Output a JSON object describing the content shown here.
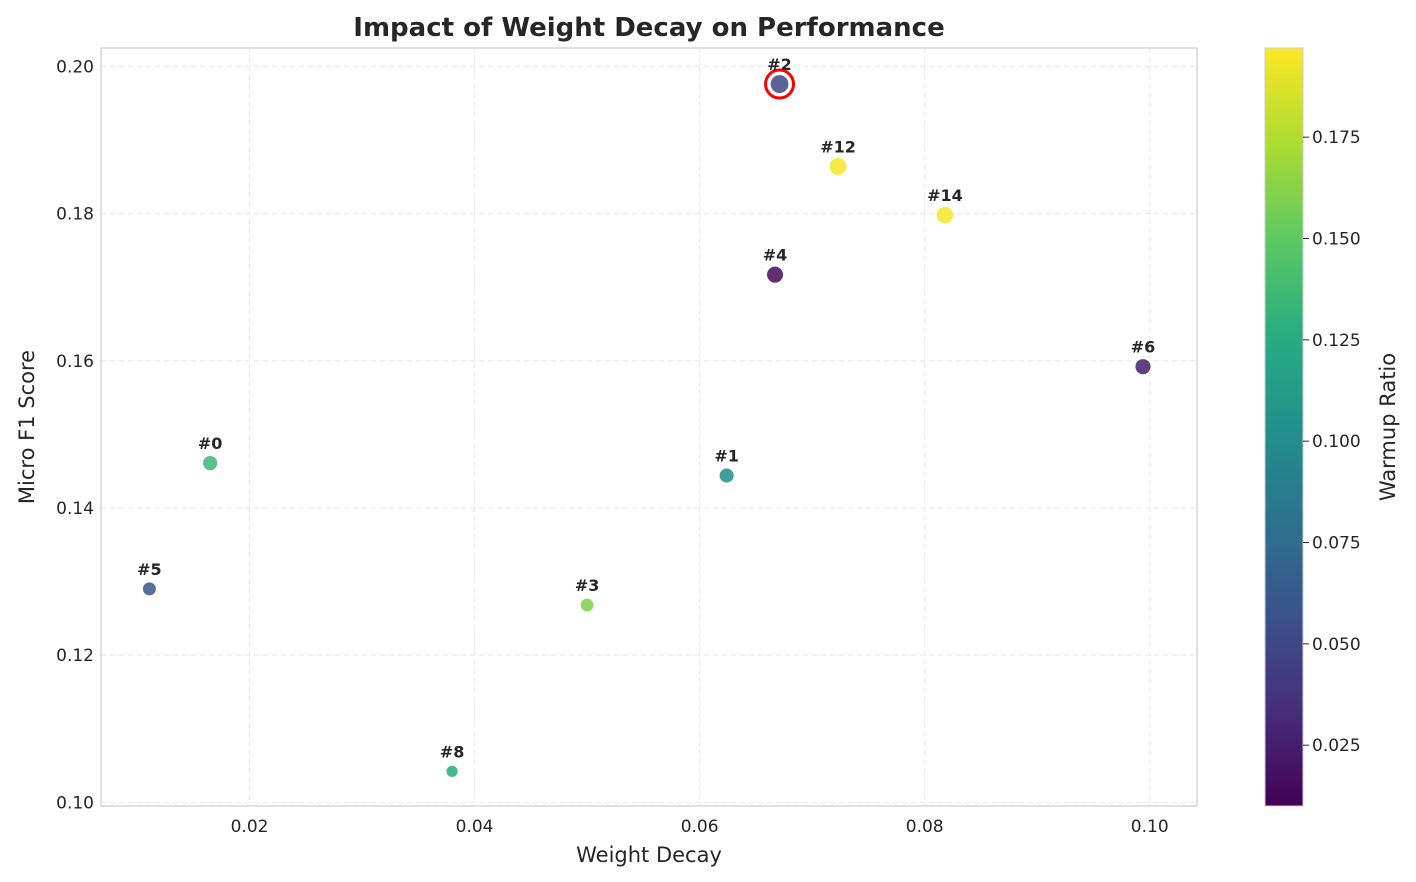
{
  "chart_data": {
    "type": "scatter",
    "title": "Impact of Weight Decay on Performance",
    "xlabel": "Weight Decay",
    "ylabel": "Micro F1 Score",
    "xlim": [
      0.0068,
      0.1042
    ],
    "ylim": [
      0.0995,
      0.2025
    ],
    "xticks": [
      0.02,
      0.04,
      0.06,
      0.08,
      0.1
    ],
    "xtick_labels": [
      "0.02",
      "0.04",
      "0.06",
      "0.08",
      "0.10"
    ],
    "yticks": [
      0.1,
      0.12,
      0.14,
      0.16,
      0.18,
      0.2
    ],
    "ytick_labels": [
      "0.10",
      "0.12",
      "0.14",
      "0.16",
      "0.18",
      "0.20"
    ],
    "grid": true,
    "colorbar": {
      "label": "Warmup Ratio",
      "colormap": "viridis",
      "range": [
        0.01,
        0.197
      ],
      "ticks": [
        0.025,
        0.05,
        0.075,
        0.1,
        0.125,
        0.15,
        0.175
      ],
      "tick_labels": [
        "0.025",
        "0.050",
        "0.075",
        "0.100",
        "0.125",
        "0.150",
        "0.175"
      ]
    },
    "points": [
      {
        "label": "#0",
        "x": 0.0165,
        "y": 0.1461,
        "warmup": 0.135
      },
      {
        "label": "#1",
        "x": 0.0624,
        "y": 0.1444,
        "warmup": 0.1
      },
      {
        "label": "#2",
        "x": 0.0671,
        "y": 0.1976,
        "warmup": 0.05,
        "highlight": true
      },
      {
        "label": "#3",
        "x": 0.05,
        "y": 0.1268,
        "warmup": 0.16
      },
      {
        "label": "#4",
        "x": 0.0667,
        "y": 0.1717,
        "warmup": 0.015
      },
      {
        "label": "#5",
        "x": 0.0111,
        "y": 0.129,
        "warmup": 0.06
      },
      {
        "label": "#6",
        "x": 0.0994,
        "y": 0.1592,
        "warmup": 0.025
      },
      {
        "label": "#8",
        "x": 0.038,
        "y": 0.1042,
        "warmup": 0.125
      },
      {
        "label": "#12",
        "x": 0.0723,
        "y": 0.1864,
        "warmup": 0.195
      },
      {
        "label": "#14",
        "x": 0.0818,
        "y": 0.1798,
        "warmup": 0.195
      }
    ],
    "highlight_color": "#ff0000"
  }
}
